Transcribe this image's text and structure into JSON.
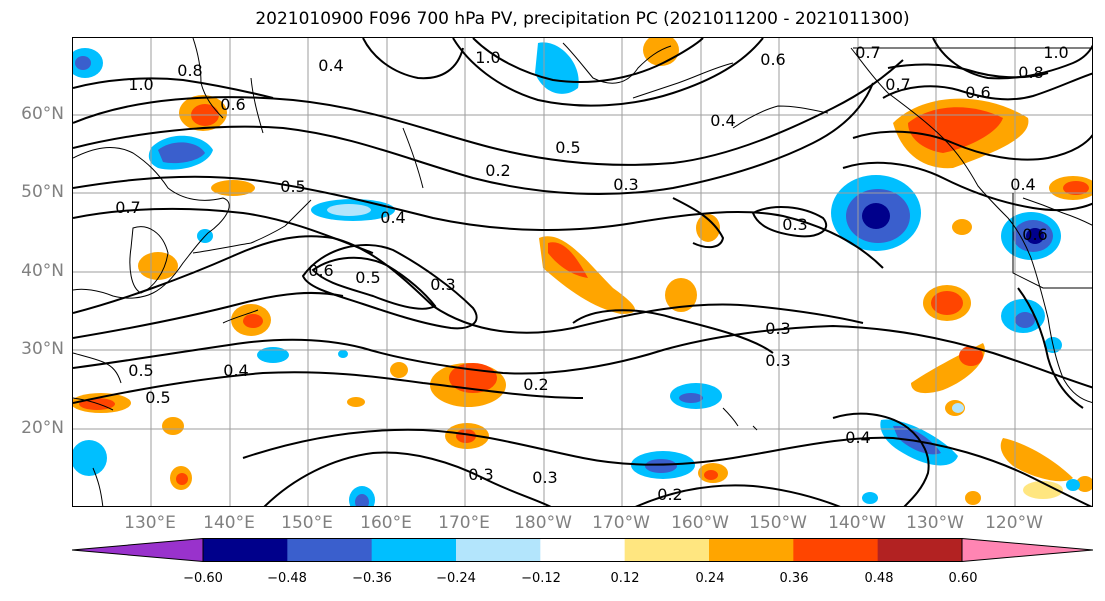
{
  "title": "2021010900 F096 700 hPa PV, precipitation PC (2021011200 - 2021011300)",
  "map": {
    "lat_labels": [
      "60°N",
      "50°N",
      "40°N",
      "30°N",
      "20°N"
    ],
    "lon_labels": [
      "130°E",
      "140°E",
      "150°E",
      "160°E",
      "170°E",
      "180°W",
      "170°W",
      "160°W",
      "150°W",
      "140°W",
      "130°W",
      "120°W"
    ],
    "contour_labels": [
      "1.0",
      "0.4",
      "1.0",
      "0.6",
      "0.7",
      "0.8",
      "1.0",
      "0.8",
      "0.6",
      "0.7",
      "0.6",
      "0.4",
      "0.5",
      "0.4",
      "0.5",
      "0.2",
      "0.3",
      "0.7",
      "0.4",
      "0.3",
      "0.6",
      "0.5",
      "0.3",
      "0.3",
      "0.3",
      "0.4",
      "0.5",
      "0.2",
      "0.4",
      "0.3",
      "0.3",
      "0.2",
      "0.5",
      "0.6"
    ]
  },
  "colorbar": {
    "ticks": [
      "−0.60",
      "−0.48",
      "−0.36",
      "−0.24",
      "−0.12",
      "0.12",
      "0.24",
      "0.36",
      "0.48",
      "0.60"
    ],
    "colors": [
      "#9932cc",
      "#00008b",
      "#3a5fcd",
      "#00bfff",
      "#b3e5fc",
      "#ffffff",
      "#ffe680",
      "#ffa500",
      "#ff4500",
      "#b22222",
      "#ff85b3"
    ]
  }
}
